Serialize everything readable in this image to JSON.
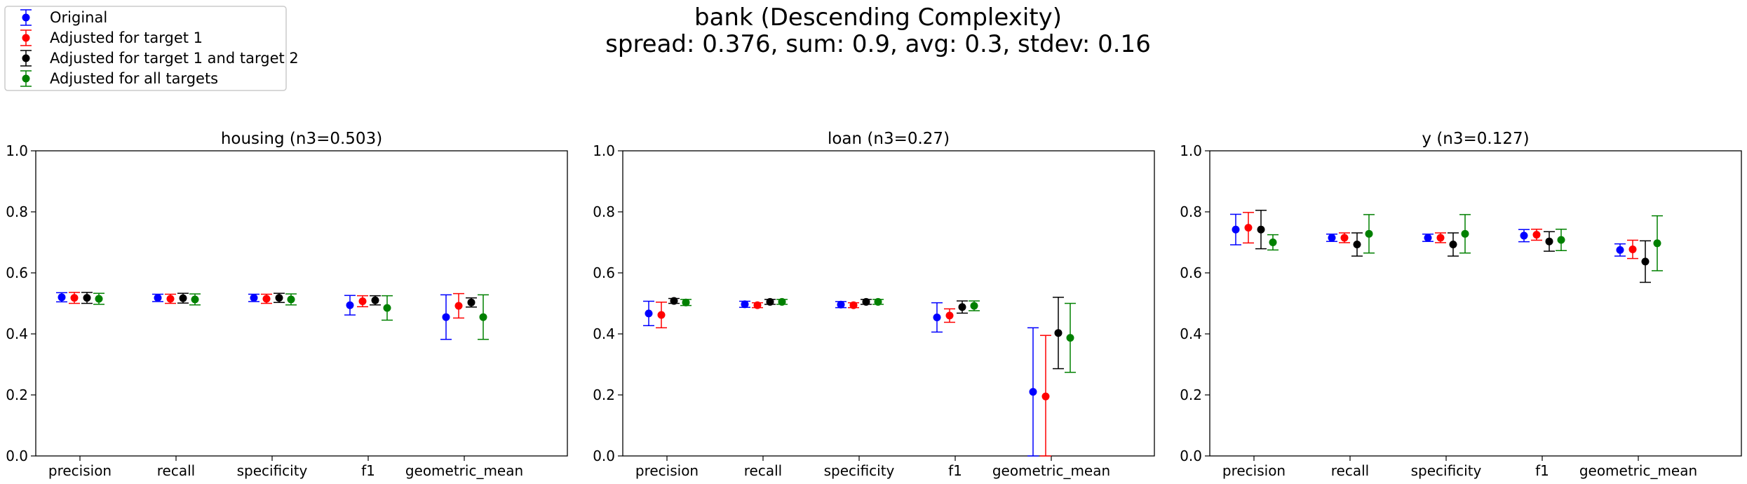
{
  "suptitle": {
    "line1": "bank (Descending Complexity)",
    "line2": "spread: 0.376, sum: 0.9, avg: 0.3, stdev: 0.16"
  },
  "legend": {
    "placement": "top-left",
    "entries": [
      {
        "label": "Original",
        "color": "#0000ff"
      },
      {
        "label": "Adjusted for target 1",
        "color": "#ff0000"
      },
      {
        "label": "Adjusted for target 1 and target 2",
        "color": "#000000"
      },
      {
        "label": "Adjusted for all targets",
        "color": "#008000"
      }
    ]
  },
  "chart_data": [
    {
      "type": "scatter",
      "title": "housing (n3=0.503)",
      "categories": [
        "precision",
        "recall",
        "specificity",
        "f1",
        "geometric_mean"
      ],
      "ylim": [
        0,
        1
      ],
      "yticks": [
        "0.0",
        "0.2",
        "0.4",
        "0.6",
        "0.8",
        "1.0"
      ],
      "series": [
        {
          "name": "Original",
          "color": "#0000ff",
          "values": [
            0.52,
            0.518,
            0.518,
            0.494,
            0.455
          ],
          "errors": [
            0.015,
            0.012,
            0.012,
            0.032,
            0.073
          ]
        },
        {
          "name": "Adjusted for target 1",
          "color": "#ff0000",
          "values": [
            0.518,
            0.515,
            0.515,
            0.507,
            0.492
          ],
          "errors": [
            0.018,
            0.015,
            0.015,
            0.018,
            0.04
          ]
        },
        {
          "name": "Adjusted for target 1 and target 2",
          "color": "#000000",
          "values": [
            0.518,
            0.517,
            0.518,
            0.51,
            0.503
          ],
          "errors": [
            0.018,
            0.016,
            0.015,
            0.015,
            0.015
          ]
        },
        {
          "name": "Adjusted for all targets",
          "color": "#008000",
          "values": [
            0.515,
            0.513,
            0.513,
            0.485,
            0.455
          ],
          "errors": [
            0.018,
            0.018,
            0.018,
            0.04,
            0.073
          ]
        }
      ]
    },
    {
      "type": "scatter",
      "title": "loan (n3=0.27)",
      "categories": [
        "precision",
        "recall",
        "specificity",
        "f1",
        "geometric_mean"
      ],
      "ylim": [
        0,
        1
      ],
      "yticks": [
        "0.0",
        "0.2",
        "0.4",
        "0.6",
        "0.8",
        "1.0"
      ],
      "series": [
        {
          "name": "Original",
          "color": "#0000ff",
          "values": [
            0.467,
            0.497,
            0.496,
            0.454,
            0.21
          ],
          "errors": [
            0.04,
            0.01,
            0.01,
            0.048,
            0.21
          ]
        },
        {
          "name": "Adjusted for target 1",
          "color": "#ff0000",
          "values": [
            0.462,
            0.494,
            0.494,
            0.46,
            0.195
          ],
          "errors": [
            0.042,
            0.008,
            0.008,
            0.022,
            0.2
          ]
        },
        {
          "name": "Adjusted for target 1 and target 2",
          "color": "#000000",
          "values": [
            0.508,
            0.505,
            0.505,
            0.488,
            0.403
          ],
          "errors": [
            0.008,
            0.008,
            0.008,
            0.02,
            0.117
          ]
        },
        {
          "name": "Adjusted for all targets",
          "color": "#008000",
          "values": [
            0.503,
            0.505,
            0.505,
            0.492,
            0.387
          ],
          "errors": [
            0.01,
            0.008,
            0.008,
            0.016,
            0.113
          ]
        }
      ]
    },
    {
      "type": "scatter",
      "title": "y (n3=0.127)",
      "categories": [
        "precision",
        "recall",
        "specificity",
        "f1",
        "geometric_mean"
      ],
      "ylim": [
        0,
        1
      ],
      "yticks": [
        "0.0",
        "0.2",
        "0.4",
        "0.6",
        "0.8",
        "1.0"
      ],
      "series": [
        {
          "name": "Original",
          "color": "#0000ff",
          "values": [
            0.742,
            0.715,
            0.715,
            0.722,
            0.675
          ],
          "errors": [
            0.05,
            0.012,
            0.012,
            0.02,
            0.02
          ]
        },
        {
          "name": "Adjusted for target 1",
          "color": "#ff0000",
          "values": [
            0.748,
            0.715,
            0.715,
            0.725,
            0.677
          ],
          "errors": [
            0.05,
            0.016,
            0.016,
            0.018,
            0.03
          ]
        },
        {
          "name": "Adjusted for target 1 and target 2",
          "color": "#000000",
          "values": [
            0.742,
            0.693,
            0.693,
            0.703,
            0.637
          ],
          "errors": [
            0.063,
            0.038,
            0.038,
            0.032,
            0.068
          ]
        },
        {
          "name": "Adjusted for all targets",
          "color": "#008000",
          "values": [
            0.7,
            0.728,
            0.728,
            0.708,
            0.697
          ],
          "errors": [
            0.025,
            0.063,
            0.063,
            0.035,
            0.09
          ]
        }
      ]
    }
  ]
}
